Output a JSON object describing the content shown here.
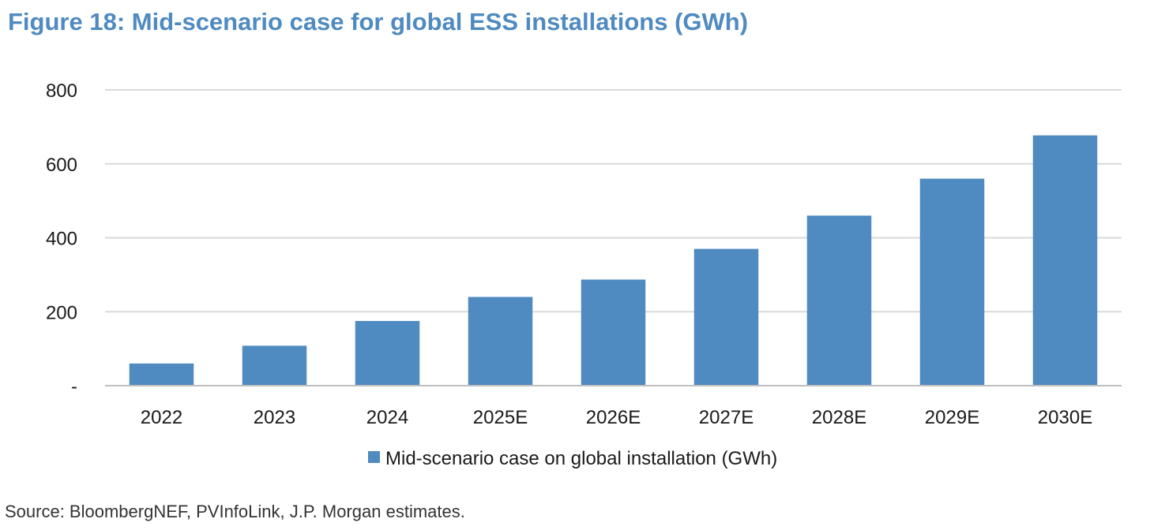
{
  "title": "Figure 18: Mid-scenario case for global ESS installations (GWh)",
  "source": "Source: BloombergNEF, PVInfoLink, J.P. Morgan estimates.",
  "colors": {
    "bar": "#4f8ac0",
    "title": "#4f8ac0",
    "grid": "#d9d9d9",
    "axis": "#bfbfbf"
  },
  "chart_data": {
    "type": "bar",
    "title": "Figure 18: Mid-scenario case for global ESS installations (GWh)",
    "xlabel": "",
    "ylabel": "",
    "ylim": [
      0,
      800
    ],
    "yticks": [
      0,
      200,
      400,
      600,
      800
    ],
    "ytick_labels": [
      "-",
      "200",
      "400",
      "600",
      "800"
    ],
    "grid": true,
    "legend": "bottom",
    "categories": [
      "2022",
      "2023",
      "2024",
      "2025E",
      "2026E",
      "2027E",
      "2028E",
      "2029E",
      "2030E"
    ],
    "series": [
      {
        "name": "Mid-scenario case on global installation (GWh)",
        "values": [
          60,
          108,
          175,
          240,
          287,
          370,
          460,
          560,
          677
        ]
      }
    ]
  }
}
